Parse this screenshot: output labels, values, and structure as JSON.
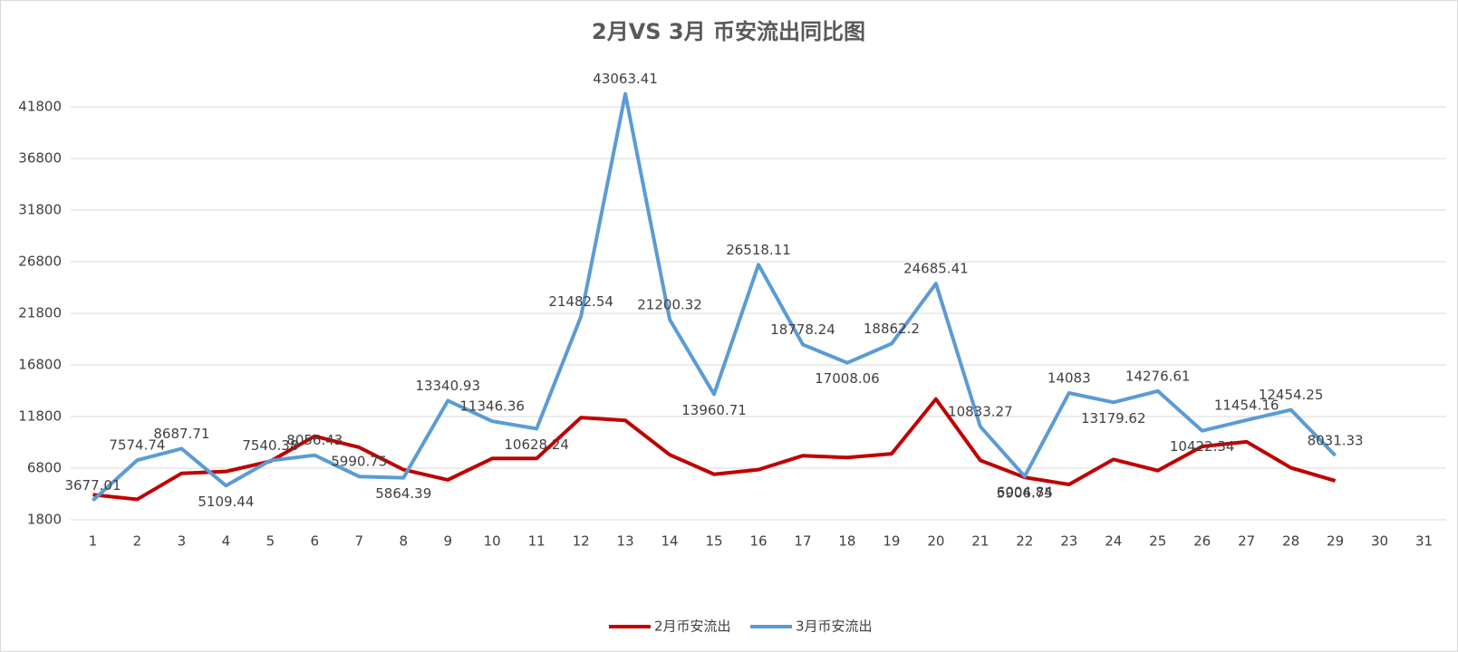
{
  "chart_data": {
    "type": "line",
    "title": "2月VS 3月 币安流出同比图",
    "categories": [
      1,
      2,
      3,
      4,
      5,
      6,
      7,
      8,
      9,
      10,
      11,
      12,
      13,
      14,
      15,
      16,
      17,
      18,
      19,
      20,
      21,
      22,
      23,
      24,
      25,
      26,
      27,
      28,
      29,
      30,
      31
    ],
    "ylim": [
      1800,
      44000
    ],
    "yticks": [
      1800,
      6800,
      11800,
      16800,
      21800,
      26800,
      31800,
      36800,
      41800
    ],
    "grid": true,
    "legend": "bottom",
    "series": [
      {
        "name": "2月币安流出",
        "color": "#c00000",
        "values": [
          4230,
          3780,
          6300,
          6480,
          7470,
          9900,
          8820,
          6660,
          5670,
          7740,
          7740,
          11700,
          11430,
          8100,
          6210,
          6660,
          8010,
          7830,
          8190,
          13500,
          7560,
          5906.75,
          5220,
          7650,
          6570,
          8910,
          9360,
          6840,
          5580,
          null,
          null
        ],
        "value_labels": [
          null,
          null,
          null,
          null,
          null,
          null,
          null,
          null,
          null,
          null,
          null,
          null,
          null,
          null,
          null,
          null,
          null,
          null,
          null,
          null,
          null,
          "5906.75",
          null,
          null,
          null,
          null,
          null,
          null,
          null,
          null,
          null
        ]
      },
      {
        "name": "3月币安流出",
        "color": "#5b9bd5",
        "values": [
          3677.01,
          7574.74,
          8687.71,
          5109.44,
          7540.38,
          8056.43,
          5990.75,
          5864.39,
          13340.93,
          11346.36,
          10628.24,
          21482.54,
          43063.41,
          21200.32,
          13960.71,
          26518.11,
          18778.24,
          17008.06,
          18862.2,
          24685.41,
          10833.27,
          6004.84,
          14083,
          13179.62,
          14276.61,
          10422.34,
          11454.16,
          12454.25,
          8031.33,
          null,
          null
        ],
        "value_labels": [
          "3677.01",
          "7574.74",
          "8687.71",
          "5109.44",
          "7540.38",
          "8056.43",
          "5990.75",
          "5864.39",
          "13340.93",
          "11346.36",
          "10628.24",
          "21482.54",
          "43063.41",
          "21200.32",
          "13960.71",
          "26518.11",
          "18778.24",
          "17008.06",
          "18862.2",
          "24685.41",
          "10833.27",
          "6004.84",
          "14083",
          "13179.62",
          "14276.61",
          "10422.34",
          "11454.16",
          "12454.25",
          "8031.33",
          null,
          null
        ]
      }
    ]
  }
}
